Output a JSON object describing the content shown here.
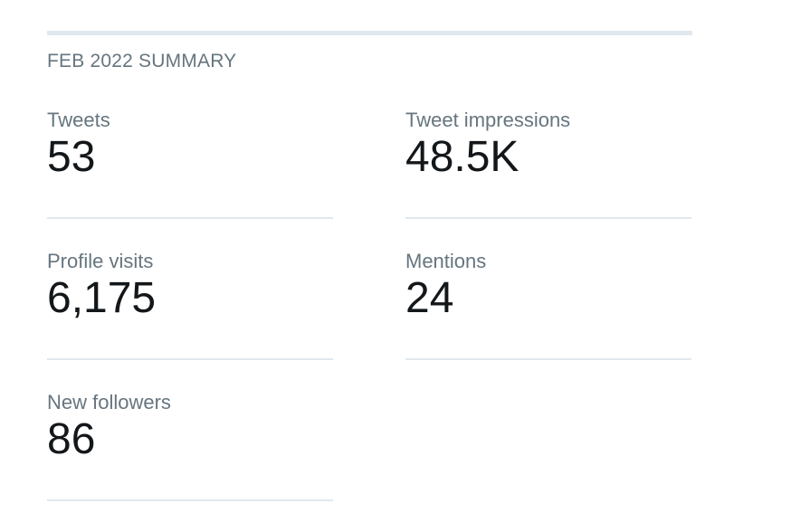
{
  "summary": {
    "title": "FEB 2022 SUMMARY",
    "stats": [
      {
        "label": "Tweets",
        "value": "53"
      },
      {
        "label": "Tweet impressions",
        "value": "48.5K"
      },
      {
        "label": "Profile visits",
        "value": "6,175"
      },
      {
        "label": "Mentions",
        "value": "24"
      },
      {
        "label": "New followers",
        "value": "86"
      }
    ]
  },
  "colors": {
    "label": "#66757f",
    "value": "#14171a",
    "divider": "#e1e8ed"
  }
}
